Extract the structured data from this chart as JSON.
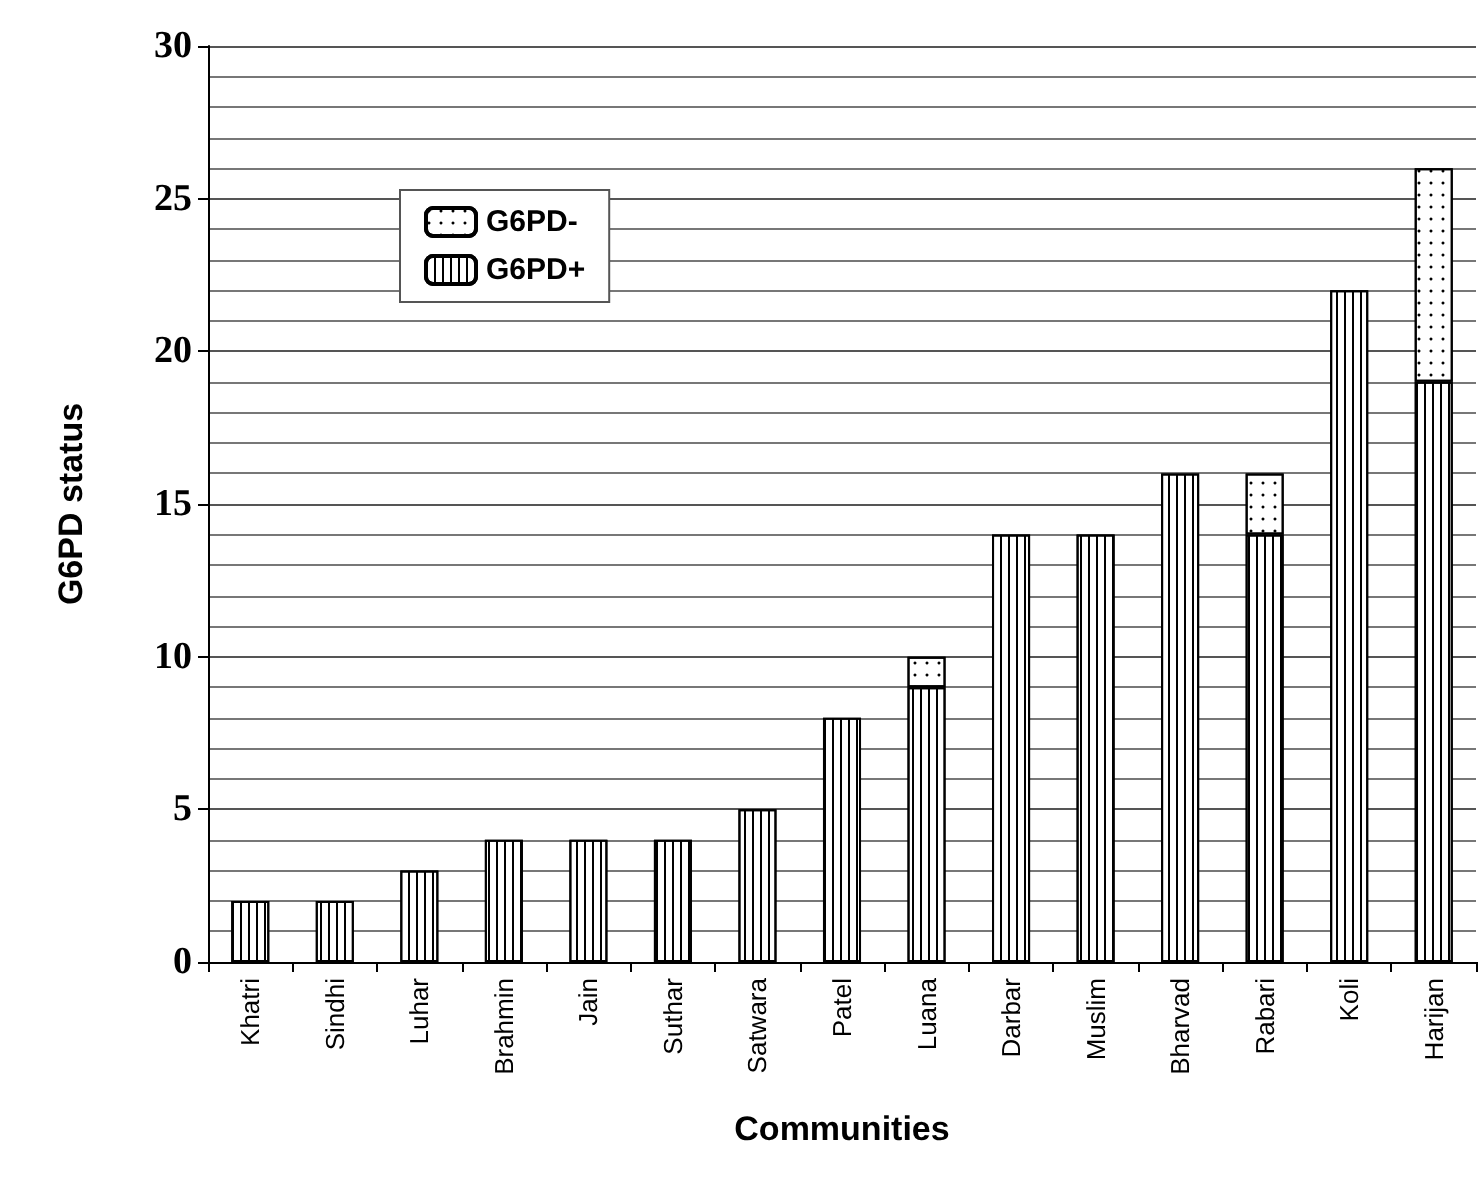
{
  "chart_data": {
    "type": "bar",
    "stacked": true,
    "xlabel": "Communities",
    "ylabel": "G6PD status",
    "categories": [
      "Khatri",
      "Sindhi",
      "Luhar",
      "Brahmin",
      "Jain",
      "Suthar",
      "Satwara",
      "Patel",
      "Luana",
      "Darbar",
      "Muslim",
      "Bharvad",
      "Rabari",
      "Koli",
      "Harijan"
    ],
    "series": [
      {
        "name": "G6PD+",
        "color": "#ffffff",
        "values": [
          2,
          2,
          3,
          4,
          4,
          4,
          5,
          8,
          9,
          14,
          14,
          16,
          14,
          22,
          19
        ]
      },
      {
        "name": "G6PD-",
        "color": "#ffffff",
        "values": [
          0,
          0,
          0,
          0,
          0,
          0,
          0,
          0,
          1,
          0,
          0,
          0,
          2,
          0,
          7
        ]
      }
    ],
    "ylim": [
      0,
      30
    ],
    "yticks": [
      0,
      5,
      10,
      15,
      20,
      25,
      30
    ],
    "grid": "y",
    "legend": "top left"
  }
}
